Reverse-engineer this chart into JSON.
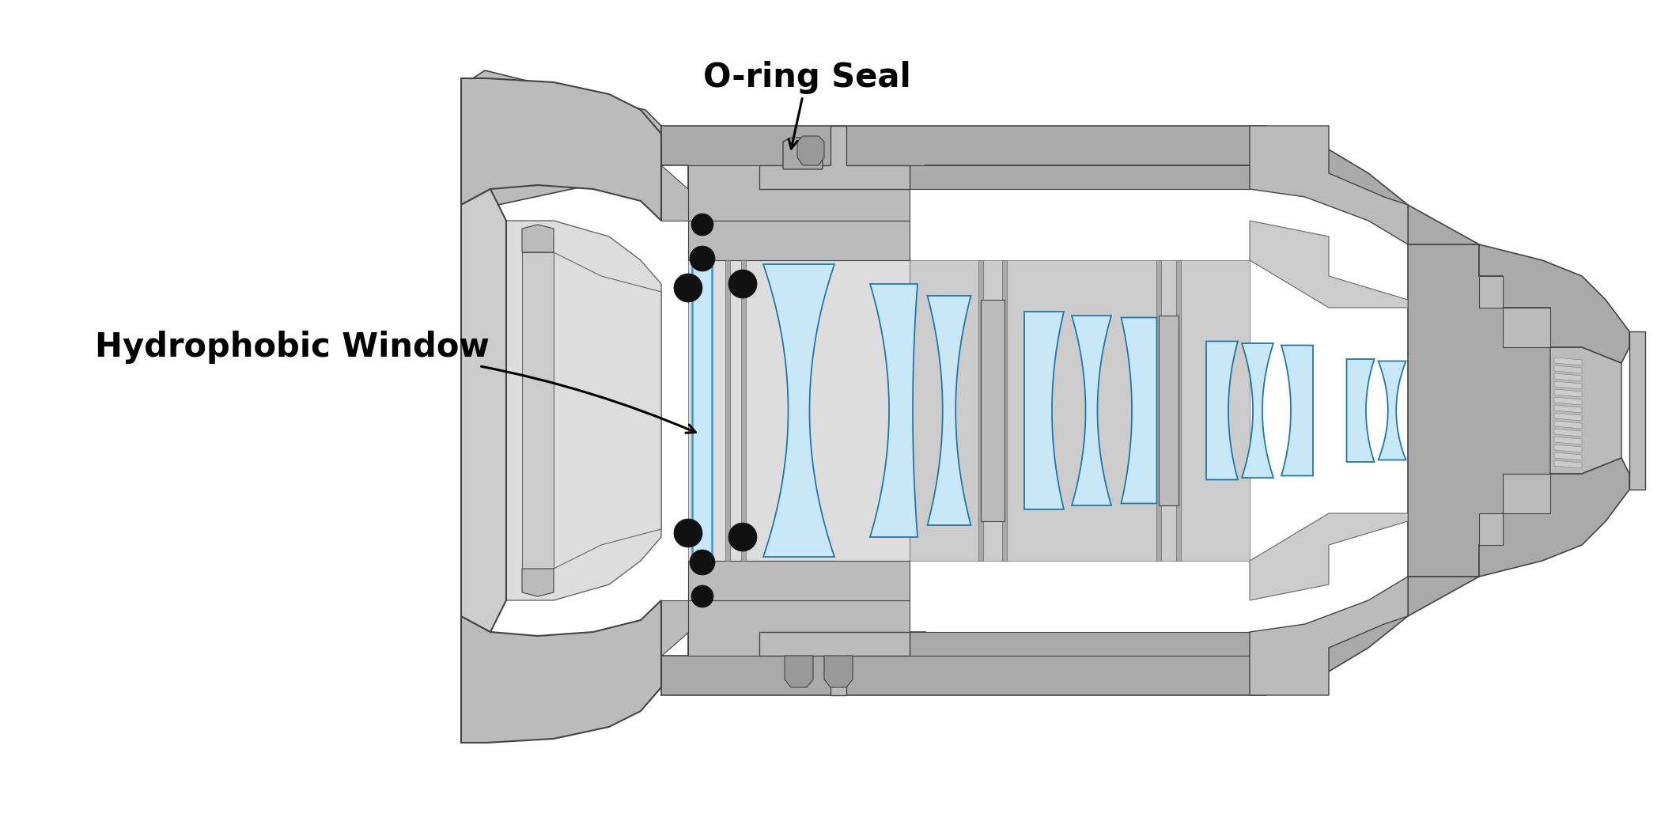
{
  "background_color": "#ffffff",
  "fig_width": 21.0,
  "fig_height": 10.38,
  "dpi": 100,
  "label_oring": "O-ring Seal",
  "label_window": "Hydrophobic Window",
  "label_fontsize": 30,
  "label_fontweight": "bold",
  "label_color": "#000000",
  "arrow_color": "#000000",
  "g1": "#787878",
  "g2": "#888888",
  "g3": "#999999",
  "g4": "#aaaaaa",
  "g5": "#bbbbbb",
  "g6": "#cccccc",
  "g7": "#dddddd",
  "g8": "#e8e8e8",
  "blue_lens": "#c8e8f8",
  "black": "#111111",
  "edge": "#444444",
  "edge2": "#666666"
}
